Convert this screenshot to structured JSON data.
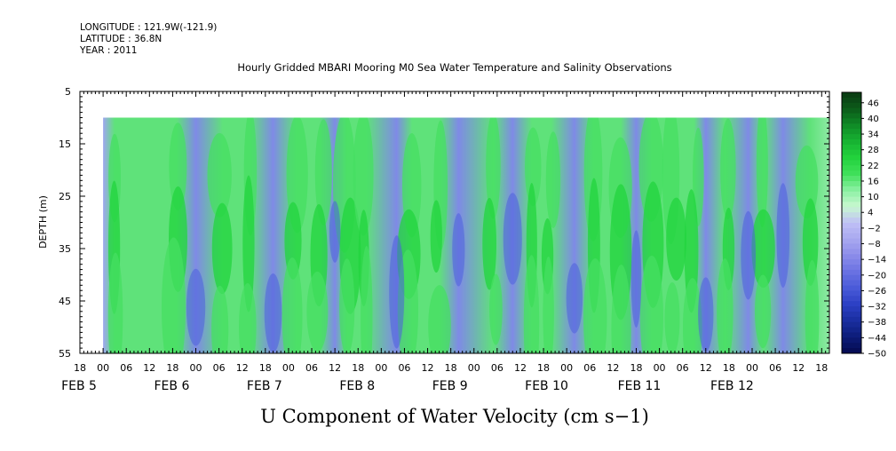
{
  "header": {
    "longitude": "LONGITUDE : 121.9W(-121.9)",
    "latitude": "LATITUDE : 36.8N",
    "year": "YEAR : 2011",
    "title": "Hourly Gridded MBARI Mooring M0 Sea Water Temperature and Salinity Observations"
  },
  "chart_data": {
    "type": "heatmap",
    "title": "Hourly Gridded MBARI Mooring M0 Sea Water Temperature and Salinity Observations",
    "xlabel": "U Component of Water Velocity (cm s−1)",
    "ylabel": "DEPTH (m)",
    "x_axis": {
      "unit": "hour of day, 2011",
      "range": [
        "2011-02-04 18:00",
        "2011-02-12 20:00"
      ],
      "hour_ticks": [
        "18",
        "00",
        "06",
        "12",
        "18",
        "00",
        "06",
        "12",
        "18",
        "00",
        "06",
        "12",
        "18",
        "00",
        "06",
        "12",
        "18",
        "00",
        "06",
        "12",
        "18",
        "00",
        "06",
        "12",
        "18",
        "00",
        "06",
        "12",
        "18",
        "00",
        "06",
        "12",
        "18"
      ],
      "date_labels": [
        "FEB  5",
        "FEB  6",
        "FEB  7",
        "FEB  8",
        "FEB  9",
        "FEB 10",
        "FEB 11",
        "FEB 12"
      ]
    },
    "y_axis": {
      "range": [
        5,
        55
      ],
      "inverted": true,
      "ticks": [
        "5",
        "15",
        "25",
        "35",
        "45",
        "55"
      ]
    },
    "data_extent": {
      "depth_m": [
        10,
        55
      ],
      "time_start": "2011-02-05 00:00",
      "time_end": "2011-02-12 20:00"
    },
    "colorbar": {
      "range": [
        -50,
        50
      ],
      "step": 2,
      "labels": [
        "46",
        "40",
        "34",
        "28",
        "22",
        "16",
        "10",
        "4",
        "−2",
        "−8",
        "−14",
        "−20",
        "−26",
        "−32",
        "−38",
        "−44",
        "−50"
      ],
      "colors_high_to_low": [
        "#0a3a12",
        "#0c5a1a",
        "#0f8a26",
        "#17b232",
        "#22d23c",
        "#3fe05a",
        "#8af0a2",
        "#c8f8d0",
        "#c0c0f6",
        "#a8a8f0",
        "#8c8cea",
        "#6a72e2",
        "#4a5ad8",
        "#2c40c4",
        "#1a2ea0",
        "#0c1c78",
        "#050a50"
      ]
    },
    "patterns": {
      "green_bands_times": [
        "2011-02-05 03:00",
        "2011-02-05 19:00",
        "2011-02-06 07:00",
        "2011-02-06 14:00",
        "2011-02-07 02:00",
        "2011-02-07 08:00",
        "2011-02-07 15:00",
        "2011-02-07 20:00",
        "2011-02-08 08:00",
        "2011-02-08 15:00",
        "2011-02-09 05:00",
        "2011-02-09 15:00",
        "2011-02-09 20:00",
        "2011-02-10 07:00",
        "2011-02-10 14:00",
        "2011-02-10 22:00",
        "2011-02-11 04:00",
        "2011-02-11 09:00",
        "2011-02-11 17:00",
        "2011-02-12 03:00",
        "2011-02-12 15:00"
      ],
      "blue_cores_times": [
        "2011-02-06 00:00",
        "2011-02-06 20:00",
        "2011-02-07 12:00",
        "2011-02-08 04:00",
        "2011-02-08 20:00",
        "2011-02-09 10:00",
        "2011-02-10 02:00",
        "2011-02-10 18:00",
        "2011-02-11 12:00",
        "2011-02-11 23:00",
        "2011-02-12 08:00"
      ]
    }
  }
}
